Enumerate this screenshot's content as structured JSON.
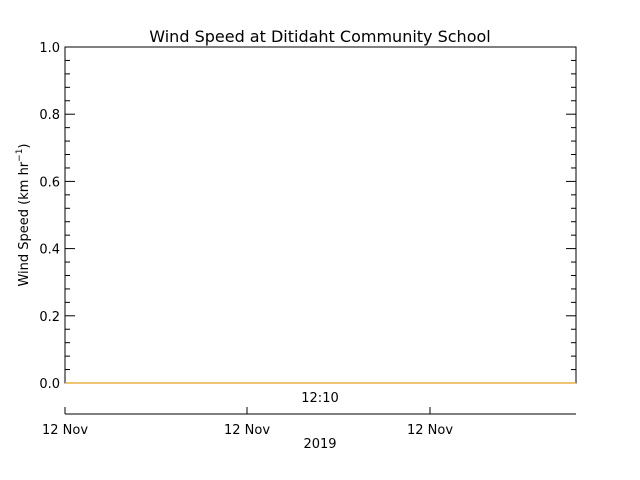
{
  "chart_data": {
    "type": "line",
    "title": "Wind Speed at Ditidaht Community School",
    "ylabel_main": "Wind Speed (km hr",
    "ylabel_sup": "−1",
    "ylabel_close": ")",
    "ylim": [
      0.0,
      1.0
    ],
    "yticks": [
      "0.0",
      "0.2",
      "0.4",
      "0.6",
      "0.8",
      "1.0"
    ],
    "time_label": "12:10",
    "date_ticks": [
      "12 Nov",
      "12 Nov",
      "12 Nov"
    ],
    "year_label": "2019",
    "series": [
      {
        "color": "#e8a020",
        "x": [
          0,
          1
        ],
        "y": [
          0.0,
          0.0
        ]
      }
    ]
  }
}
